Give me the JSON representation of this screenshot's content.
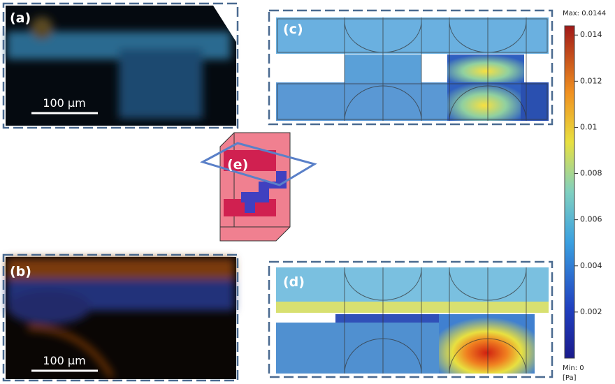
{
  "panels": {
    "a": {
      "label": "(a)",
      "scale_bar": "100 μm"
    },
    "b": {
      "label": "(b)",
      "scale_bar": "100 μm"
    },
    "c": {
      "label": "(c)"
    },
    "d": {
      "label": "(d)"
    },
    "e": {
      "label": "(e)"
    }
  },
  "colorbar": {
    "max_label": "Max: 0.0144",
    "min_label": "Min: 0",
    "unit": "[Pa]",
    "lim": [
      0,
      0.0144
    ],
    "ticks": [
      0.002,
      0.004,
      0.006,
      0.008,
      0.01,
      0.012,
      0.014
    ]
  }
}
